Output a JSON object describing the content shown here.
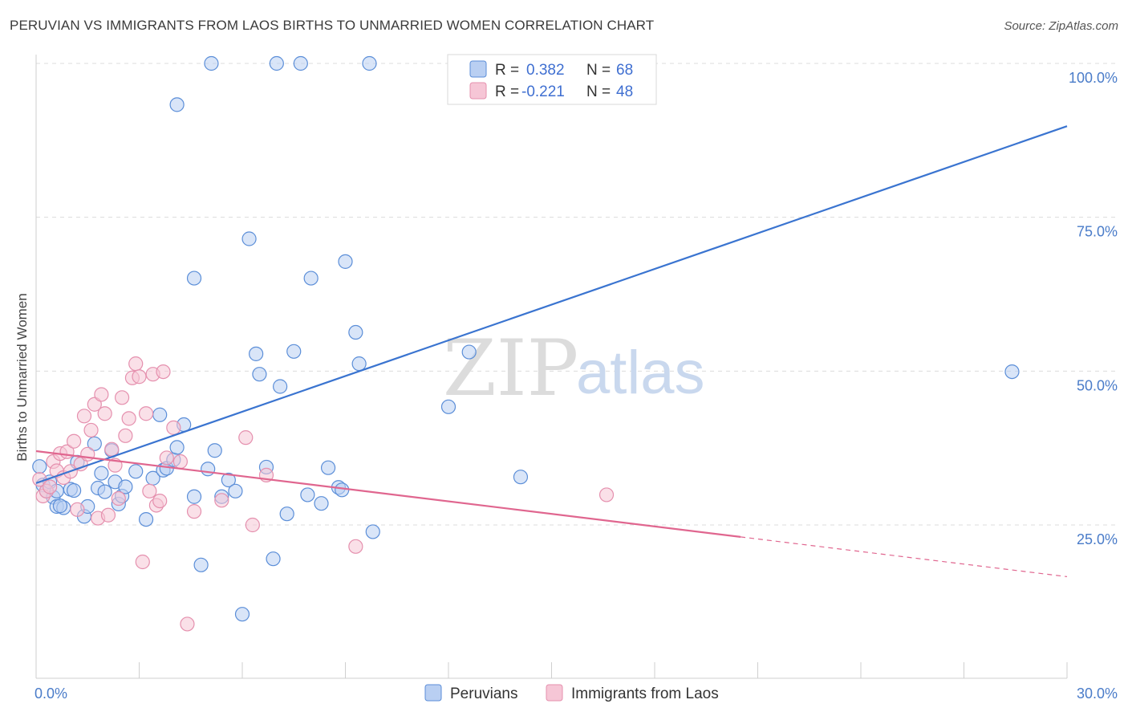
{
  "title": "PERUVIAN VS IMMIGRANTS FROM LAOS BIRTHS TO UNMARRIED WOMEN CORRELATION CHART",
  "source": "Source: ZipAtlas.com",
  "watermark": {
    "zip": "ZIP",
    "atlas": "atlas"
  },
  "colors": {
    "blue_fill": "#b9cff2",
    "blue_stroke": "#5b8ed8",
    "blue_line": "#3a74d0",
    "pink_fill": "#f6c6d6",
    "pink_stroke": "#e590ae",
    "pink_line": "#e0668f"
  },
  "chart_data": {
    "type": "scatter",
    "title": "PERUVIAN VS IMMIGRANTS FROM LAOS BIRTHS TO UNMARRIED WOMEN CORRELATION CHART",
    "xlabel": "",
    "ylabel": "Births to Unmarried Women",
    "xlim": [
      0,
      30
    ],
    "ylim": [
      0,
      104
    ],
    "x_tick_labels": [
      "0.0%",
      "30.0%"
    ],
    "y_ticks": [
      25,
      50,
      75,
      100
    ],
    "y_tick_labels": [
      "25.0%",
      "50.0%",
      "75.0%",
      "100.0%"
    ],
    "grid": true,
    "legend": {
      "placement": "top-center",
      "entries": [
        {
          "r_label": "R =",
          "r_value": "0.382",
          "n_label": "N =",
          "n_value": "68"
        },
        {
          "r_label": "R =",
          "r_value": "-0.221",
          "n_label": "N =",
          "n_value": "48"
        }
      ]
    },
    "series": [
      {
        "name": "Peruvians",
        "trend": {
          "x": [
            0,
            30
          ],
          "y": [
            31.8,
            89.8
          ],
          "solid_to": 30
        },
        "points": [
          [
            0.1,
            34.5
          ],
          [
            0.2,
            31.5
          ],
          [
            0.3,
            30.5
          ],
          [
            0.4,
            32
          ],
          [
            0.5,
            29.5
          ],
          [
            0.6,
            30.5
          ],
          [
            0.6,
            28
          ],
          [
            0.8,
            27.8
          ],
          [
            0.7,
            28.1
          ],
          [
            1.0,
            30.8
          ],
          [
            1.1,
            30.6
          ],
          [
            1.2,
            35.2
          ],
          [
            1.4,
            26.4
          ],
          [
            1.5,
            28
          ],
          [
            1.7,
            38.2
          ],
          [
            1.8,
            31
          ],
          [
            1.9,
            33.4
          ],
          [
            2.0,
            30.4
          ],
          [
            2.2,
            37.1
          ],
          [
            2.3,
            32
          ],
          [
            2.4,
            28.4
          ],
          [
            2.5,
            29.7
          ],
          [
            2.6,
            31.2
          ],
          [
            2.9,
            33.7
          ],
          [
            3.2,
            25.9
          ],
          [
            3.4,
            32.6
          ],
          [
            3.6,
            42.9
          ],
          [
            3.7,
            33.9
          ],
          [
            3.8,
            34.2
          ],
          [
            4.0,
            35.6
          ],
          [
            4.1,
            37.6
          ],
          [
            4.3,
            41.3
          ],
          [
            4.6,
            29.6
          ],
          [
            4.8,
            18.5
          ],
          [
            5.0,
            34.1
          ],
          [
            5.2,
            37.1
          ],
          [
            5.4,
            29.6
          ],
          [
            5.6,
            32.3
          ],
          [
            5.8,
            30.5
          ],
          [
            6.0,
            10.5
          ],
          [
            6.2,
            71.5
          ],
          [
            6.4,
            52.8
          ],
          [
            6.5,
            49.5
          ],
          [
            6.7,
            34.4
          ],
          [
            6.9,
            19.5
          ],
          [
            7.1,
            47.5
          ],
          [
            7.3,
            26.8
          ],
          [
            7.5,
            53.2
          ],
          [
            7.9,
            29.9
          ],
          [
            8.0,
            65.1
          ],
          [
            8.3,
            28.5
          ],
          [
            8.5,
            34.3
          ],
          [
            8.8,
            31.1
          ],
          [
            8.9,
            30.7
          ],
          [
            9.0,
            67.8
          ],
          [
            9.3,
            56.3
          ],
          [
            9.4,
            51.2
          ],
          [
            9.8,
            23.9
          ],
          [
            12.0,
            44.2
          ],
          [
            12.6,
            53.1
          ],
          [
            14.1,
            32.8
          ],
          [
            28.4,
            49.9
          ],
          [
            5.1,
            100
          ],
          [
            7.0,
            100
          ],
          [
            7.7,
            100
          ],
          [
            9.7,
            100
          ],
          [
            4.1,
            93.3
          ],
          [
            4.6,
            65.1
          ]
        ]
      },
      {
        "name": "Immigrants from Laos",
        "trend": {
          "x": [
            0,
            30
          ],
          "y": [
            37.0,
            16.6
          ],
          "solid_to": 20.5
        },
        "points": [
          [
            0.1,
            32.4
          ],
          [
            0.2,
            29.7
          ],
          [
            0.3,
            30.5
          ],
          [
            0.4,
            31.2
          ],
          [
            0.5,
            35.3
          ],
          [
            0.6,
            33.8
          ],
          [
            0.7,
            36.6
          ],
          [
            0.8,
            32.7
          ],
          [
            0.9,
            36.9
          ],
          [
            1.0,
            33.7
          ],
          [
            1.1,
            38.6
          ],
          [
            1.2,
            27.5
          ],
          [
            1.3,
            34.9
          ],
          [
            1.4,
            42.7
          ],
          [
            1.5,
            36.5
          ],
          [
            1.6,
            40.4
          ],
          [
            1.7,
            44.6
          ],
          [
            1.8,
            26.1
          ],
          [
            1.9,
            46.2
          ],
          [
            2.0,
            43.1
          ],
          [
            2.1,
            26.6
          ],
          [
            2.2,
            37.3
          ],
          [
            2.3,
            34.7
          ],
          [
            2.4,
            29.3
          ],
          [
            2.5,
            45.7
          ],
          [
            2.6,
            39.5
          ],
          [
            2.7,
            42.3
          ],
          [
            2.8,
            48.9
          ],
          [
            2.9,
            51.2
          ],
          [
            3.0,
            49.1
          ],
          [
            3.1,
            19
          ],
          [
            3.2,
            43.1
          ],
          [
            3.3,
            30.5
          ],
          [
            3.4,
            49.5
          ],
          [
            3.5,
            28.2
          ],
          [
            3.6,
            28.9
          ],
          [
            3.7,
            49.9
          ],
          [
            3.8,
            35.9
          ],
          [
            4.0,
            40.8
          ],
          [
            4.2,
            35.3
          ],
          [
            4.4,
            8.9
          ],
          [
            4.6,
            27.2
          ],
          [
            5.4,
            29
          ],
          [
            6.1,
            39.2
          ],
          [
            6.3,
            25
          ],
          [
            6.7,
            33.1
          ],
          [
            9.3,
            21.5
          ],
          [
            16.6,
            29.9
          ]
        ]
      }
    ]
  }
}
